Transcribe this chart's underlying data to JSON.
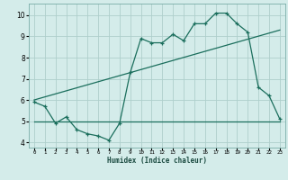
{
  "xlabel": "Humidex (Indice chaleur)",
  "bg_color": "#d4ecea",
  "grid_color": "#aecfcc",
  "line_color": "#1a6e5c",
  "xlim": [
    -0.5,
    23.5
  ],
  "ylim": [
    3.75,
    10.55
  ],
  "xticks": [
    0,
    1,
    2,
    3,
    4,
    5,
    6,
    7,
    8,
    9,
    10,
    11,
    12,
    13,
    14,
    15,
    16,
    17,
    18,
    19,
    20,
    21,
    22,
    23
  ],
  "yticks": [
    4,
    5,
    6,
    7,
    8,
    9,
    10
  ],
  "line1_x": [
    0,
    1,
    2,
    3,
    4,
    5,
    6,
    7,
    8,
    9,
    10,
    11,
    12,
    13,
    14,
    15,
    16,
    17,
    18,
    19,
    20,
    21,
    22,
    23
  ],
  "line1_y": [
    5.9,
    5.7,
    4.9,
    5.2,
    4.6,
    4.4,
    4.3,
    4.1,
    4.9,
    7.3,
    8.9,
    8.7,
    8.7,
    9.1,
    8.8,
    9.6,
    9.6,
    10.1,
    10.1,
    9.6,
    9.2,
    6.6,
    6.2,
    5.1
  ],
  "line2_x": [
    0,
    23
  ],
  "line2_y": [
    5.0,
    5.0
  ],
  "line3_x": [
    0,
    23
  ],
  "line3_y": [
    6.0,
    9.3
  ]
}
